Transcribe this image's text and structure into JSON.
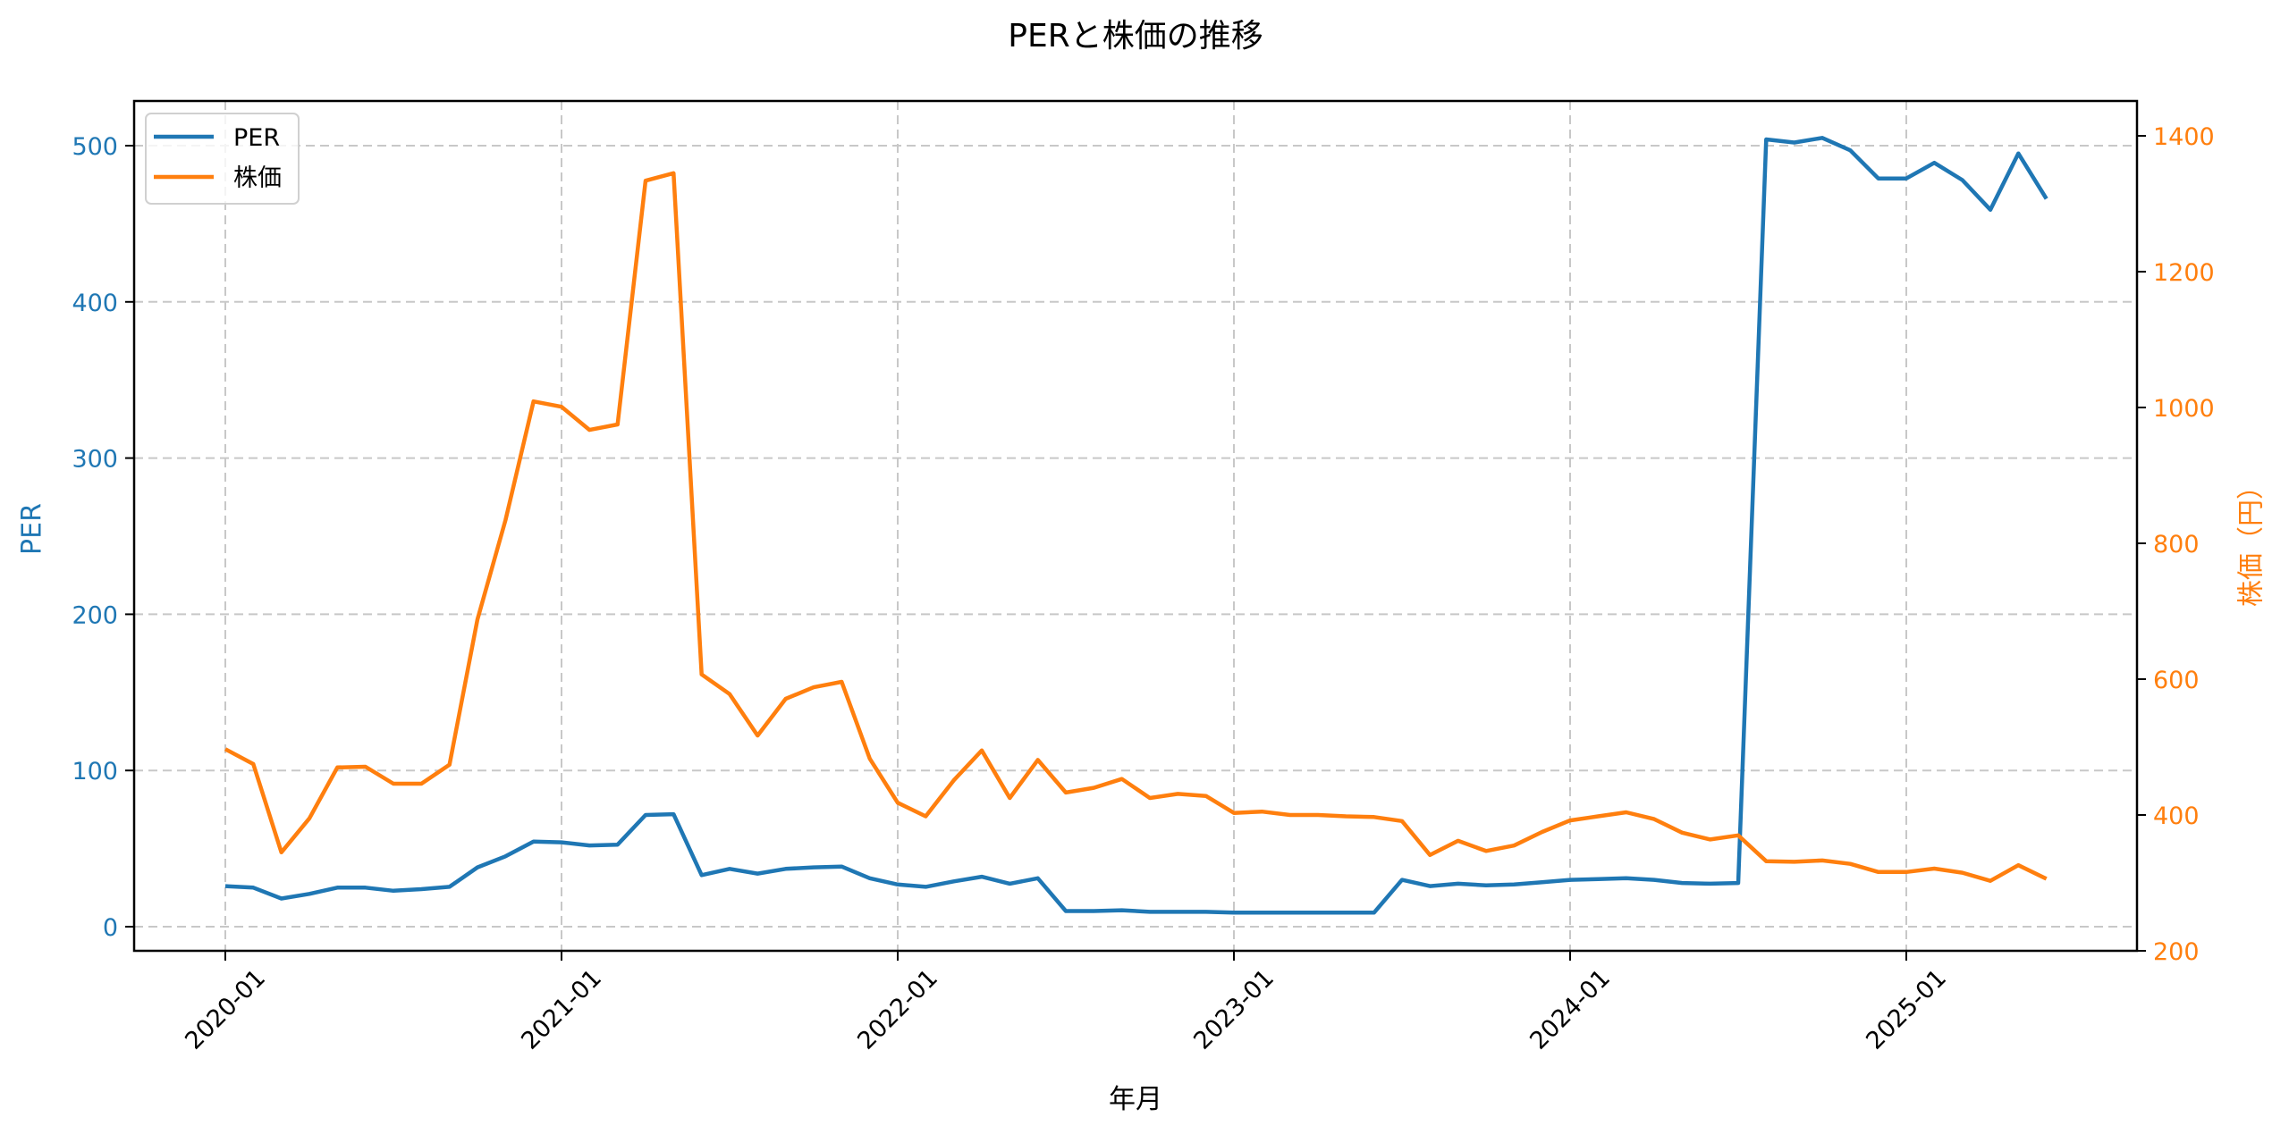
{
  "chart_data": {
    "type": "line",
    "title": "PERと株価の推移",
    "xlabel": "年月",
    "ylabel_left": "PER",
    "ylabel_right": "株価（円）",
    "x_tick_labels": [
      "2020-01",
      "2021-01",
      "2022-01",
      "2023-01",
      "2024-01",
      "2025-01"
    ],
    "y_left_ticks": [
      0,
      100,
      200,
      300,
      400,
      500
    ],
    "y_right_ticks": [
      200,
      400,
      600,
      800,
      1000,
      1200,
      1400
    ],
    "y_left_lim": [
      -16,
      528
    ],
    "y_right_lim": [
      200,
      1462
    ],
    "grid": true,
    "legend_position": "upper left",
    "x_start": "2020-01",
    "x_end": "2025-06",
    "series": [
      {
        "name": "PER",
        "axis": "left",
        "color": "#1f77b4",
        "values": [
          26,
          25,
          18,
          21,
          25,
          25,
          23,
          24,
          25.5,
          38,
          45,
          54.5,
          54,
          52,
          52.5,
          71.5,
          72,
          33,
          37,
          34,
          37,
          38,
          38.5,
          31,
          27,
          25.5,
          29,
          32,
          27.5,
          31,
          10,
          10,
          10.5,
          9.5,
          9.5,
          9.5,
          9,
          9,
          9,
          9,
          9,
          9,
          30,
          26,
          27.5,
          26.5,
          27,
          28.5,
          30,
          30.5,
          31,
          30,
          28,
          27.5,
          28,
          504,
          502,
          505,
          497,
          479,
          479,
          489,
          478,
          459,
          495,
          466
        ]
      },
      {
        "name": "株価",
        "axis": "right",
        "color": "#ff7f0e",
        "values": [
          497,
          475,
          345,
          395,
          470,
          471,
          446,
          446,
          474,
          688,
          834,
          1009,
          1001,
          967,
          975,
          1334,
          1345,
          607,
          578,
          517,
          571,
          588,
          596,
          483,
          418,
          398,
          451,
          495,
          425,
          481,
          433,
          440,
          453,
          425,
          431,
          428,
          403,
          405,
          400,
          400,
          398,
          397,
          391,
          341,
          362,
          347,
          355,
          375,
          392,
          398,
          404,
          394,
          374,
          364,
          370,
          332,
          331,
          333,
          328,
          316,
          316,
          321,
          315,
          303,
          326,
          306
        ]
      }
    ]
  }
}
